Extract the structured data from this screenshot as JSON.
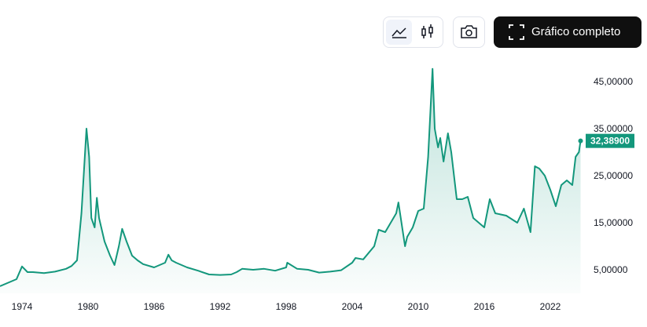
{
  "toolbar": {
    "full_chart": "Gráfico completo"
  },
  "chart_data": {
    "type": "line",
    "color": "#13977c",
    "fill": true,
    "x": [
      1972,
      1973.5,
      1974,
      1974.5,
      1975,
      1976,
      1977,
      1978,
      1978.5,
      1979,
      1979.4,
      1979.86,
      1980.1,
      1980.3,
      1980.6,
      1980.8,
      1981,
      1981.5,
      1982,
      1982.4,
      1982.8,
      1983.1,
      1983.5,
      1984,
      1984.5,
      1985,
      1986,
      1987,
      1987.3,
      1987.6,
      1988,
      1989,
      1990,
      1991,
      1992,
      1993,
      1993.5,
      1994,
      1995,
      1996,
      1997,
      1998,
      1998.1,
      1999,
      2000,
      2001,
      2002,
      2003,
      2004,
      2004.3,
      2005,
      2006,
      2006.4,
      2007,
      2008,
      2008.2,
      2008.8,
      2009,
      2009.5,
      2010,
      2010.5,
      2010.9,
      2011.3,
      2011.5,
      2011.8,
      2012,
      2012.3,
      2012.7,
      2013,
      2013.5,
      2014,
      2014.5,
      2015,
      2016,
      2016.5,
      2017,
      2018,
      2019,
      2019.6,
      2020.2,
      2020.6,
      2021,
      2021.5,
      2022,
      2022.5,
      2023,
      2023.5,
      2024,
      2024.3,
      2024.6,
      2024.75
    ],
    "values": [
      1.5,
      3,
      5.7,
      4.5,
      4.5,
      4.3,
      4.6,
      5.2,
      5.8,
      7,
      17,
      35,
      29,
      16,
      14,
      20.3,
      16,
      11,
      8,
      6,
      10,
      13.7,
      11,
      8,
      7,
      6.2,
      5.5,
      6.5,
      8.2,
      7,
      6.5,
      5.5,
      4.8,
      4,
      3.9,
      4,
      4.5,
      5.2,
      5,
      5.2,
      4.8,
      5.5,
      6.5,
      5.2,
      5,
      4.4,
      4.6,
      4.9,
      6.5,
      7.5,
      7.2,
      10,
      13.5,
      13,
      17,
      19.3,
      10,
      12,
      14,
      17.5,
      18,
      29,
      47.7,
      35,
      31,
      33,
      28,
      34,
      30,
      20,
      20,
      20.5,
      16,
      14,
      20,
      17,
      16.5,
      15,
      18,
      13,
      27,
      26.5,
      25,
      22,
      18.5,
      23,
      24,
      23,
      29,
      30,
      32.389
    ],
    "last_price": {
      "value": 32.389,
      "label": "32,38900"
    },
    "xlim": [
      1972,
      2025
    ],
    "ylim": [
      0,
      49
    ],
    "xticks": [
      1974,
      1980,
      1986,
      1992,
      1998,
      2004,
      2010,
      2016,
      2022
    ],
    "yticks": [
      {
        "value": 5,
        "label": "5,00000"
      },
      {
        "value": 15,
        "label": "15,00000"
      },
      {
        "value": 25,
        "label": "25,00000"
      },
      {
        "value": 35,
        "label": "35,00000"
      },
      {
        "value": 45,
        "label": "45,00000"
      }
    ]
  }
}
